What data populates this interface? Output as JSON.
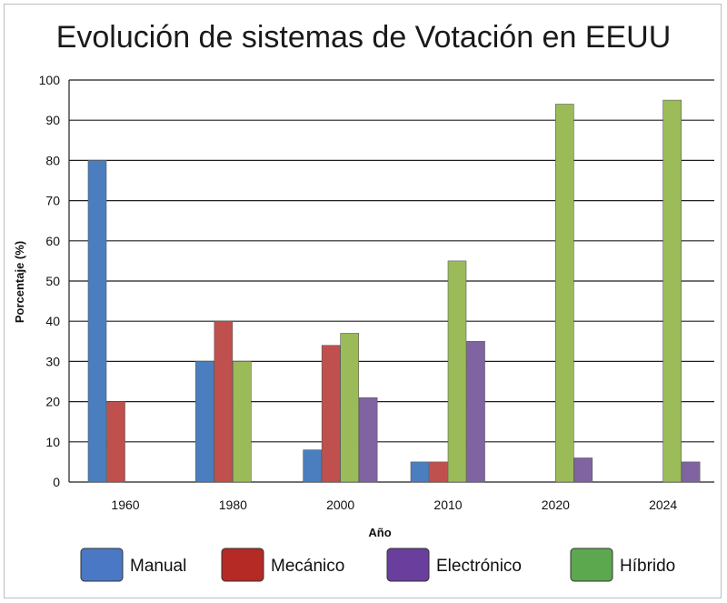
{
  "chart_data": {
    "type": "bar",
    "title": "Evolución de sistemas de Votación en EEUU",
    "xlabel": "Año",
    "ylabel": "Porcentaje (%)",
    "ylim": [
      0,
      100
    ],
    "yticks": [
      0,
      10,
      20,
      30,
      40,
      50,
      60,
      70,
      80,
      90,
      100
    ],
    "grid": true,
    "legend_position": "bottom",
    "categories": [
      "1960",
      "1980",
      "2000",
      "2010",
      "2020",
      "2024"
    ],
    "series": [
      {
        "name": "Manual",
        "color": "#4a7ebf",
        "legend_color": "#4a78c4",
        "values": [
          80,
          30,
          8,
          5,
          0,
          0
        ]
      },
      {
        "name": "Mecánico",
        "color": "#c0504d",
        "legend_color": "#b52a25",
        "values": [
          20,
          40,
          34,
          5,
          0,
          0
        ]
      },
      {
        "name": "Híbrido",
        "color": "#9bbb59",
        "legend_color": "#5ca84e",
        "values": [
          0,
          30,
          37,
          55,
          94,
          95
        ]
      },
      {
        "name": "Electrónico",
        "color": "#8064a2",
        "legend_color": "#6a3e9c",
        "values": [
          0,
          0,
          21,
          35,
          6,
          5
        ]
      }
    ],
    "legend_order": [
      "Manual",
      "Mecánico",
      "Electrónico",
      "Híbrido"
    ]
  }
}
